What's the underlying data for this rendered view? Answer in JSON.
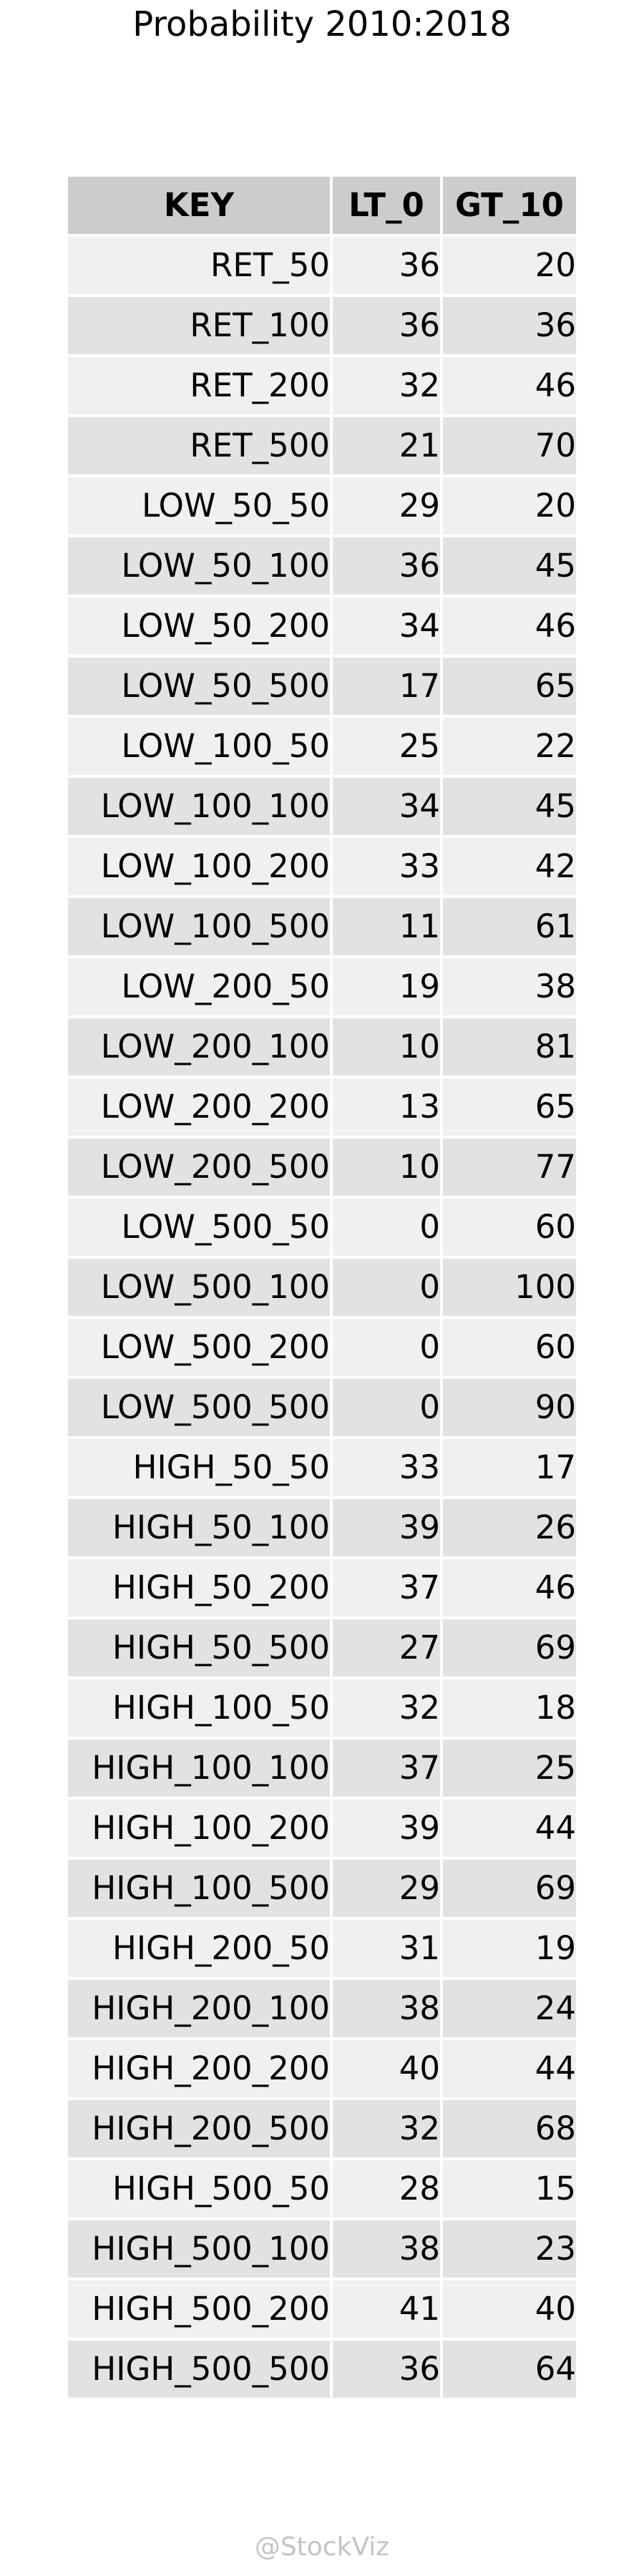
{
  "title": "Probability 2010:2018",
  "watermark": "@StockViz",
  "chart_data": {
    "type": "table",
    "title": "Probability 2010:2018",
    "columns": [
      "KEY",
      "LT_0",
      "GT_10"
    ],
    "rows": [
      [
        "RET_50",
        36,
        20
      ],
      [
        "RET_100",
        36,
        36
      ],
      [
        "RET_200",
        32,
        46
      ],
      [
        "RET_500",
        21,
        70
      ],
      [
        "LOW_50_50",
        29,
        20
      ],
      [
        "LOW_50_100",
        36,
        45
      ],
      [
        "LOW_50_200",
        34,
        46
      ],
      [
        "LOW_50_500",
        17,
        65
      ],
      [
        "LOW_100_50",
        25,
        22
      ],
      [
        "LOW_100_100",
        34,
        45
      ],
      [
        "LOW_100_200",
        33,
        42
      ],
      [
        "LOW_100_500",
        11,
        61
      ],
      [
        "LOW_200_50",
        19,
        38
      ],
      [
        "LOW_200_100",
        10,
        81
      ],
      [
        "LOW_200_200",
        13,
        65
      ],
      [
        "LOW_200_500",
        10,
        77
      ],
      [
        "LOW_500_50",
        0,
        60
      ],
      [
        "LOW_500_100",
        0,
        100
      ],
      [
        "LOW_500_200",
        0,
        60
      ],
      [
        "LOW_500_500",
        0,
        90
      ],
      [
        "HIGH_50_50",
        33,
        17
      ],
      [
        "HIGH_50_100",
        39,
        26
      ],
      [
        "HIGH_50_200",
        37,
        46
      ],
      [
        "HIGH_50_500",
        27,
        69
      ],
      [
        "HIGH_100_50",
        32,
        18
      ],
      [
        "HIGH_100_100",
        37,
        25
      ],
      [
        "HIGH_100_200",
        39,
        44
      ],
      [
        "HIGH_100_500",
        29,
        69
      ],
      [
        "HIGH_200_50",
        31,
        19
      ],
      [
        "HIGH_200_100",
        38,
        24
      ],
      [
        "HIGH_200_200",
        40,
        44
      ],
      [
        "HIGH_200_500",
        32,
        68
      ],
      [
        "HIGH_500_50",
        28,
        15
      ],
      [
        "HIGH_500_100",
        38,
        23
      ],
      [
        "HIGH_500_200",
        41,
        40
      ],
      [
        "HIGH_500_500",
        36,
        64
      ]
    ],
    "colors": {
      "header_bg": "#cccccc",
      "row_odd_bg": "#f0f0f0",
      "row_even_bg": "#e2e2e2",
      "watermark": "#c4c4c4"
    }
  }
}
